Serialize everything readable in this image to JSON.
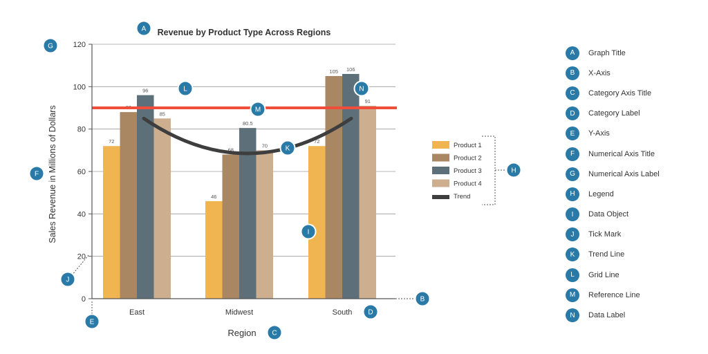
{
  "chart_data": {
    "type": "bar",
    "title": "Revenue by Product Type Across Regions",
    "xlabel": "Region",
    "ylabel": "Sales Revenue in Millions of Dollars",
    "ylim": [
      0,
      120
    ],
    "yticks": [
      "0",
      "20",
      "40",
      "60",
      "80",
      "100",
      "120"
    ],
    "categories": [
      "East",
      "Midwest",
      "South"
    ],
    "series": [
      {
        "name": "Product 1",
        "values": [
          72,
          46,
          72
        ],
        "labels": [
          "72",
          "46",
          "72"
        ],
        "color": "#f0b551"
      },
      {
        "name": "Product 2",
        "values": [
          88,
          68,
          105
        ],
        "labels": [
          "88",
          "68",
          "105"
        ],
        "color": "#a88762"
      },
      {
        "name": "Product 3",
        "values": [
          96,
          80.5,
          106
        ],
        "labels": [
          "96",
          "80.5",
          "106"
        ],
        "color": "#5d7079"
      },
      {
        "name": "Product 4",
        "values": [
          85,
          70,
          91
        ],
        "labels": [
          "85",
          "70",
          "91"
        ],
        "color": "#cdae8f"
      }
    ],
    "trend": {
      "name": "Trend",
      "values": [
        85,
        68.5,
        85
      ],
      "color": "#3e3e3e"
    },
    "reference_line": {
      "value": 90,
      "color": "#f04e3a"
    },
    "grid": true,
    "legend_position": "right"
  },
  "callouts": {
    "graph_title": "A",
    "x_axis": "B",
    "category_axis_title": "C",
    "category_label": "D",
    "y_axis": "E",
    "numerical_axis_title": "F",
    "numerical_axis_label": "G",
    "legend": "H",
    "data_object": "I",
    "tick_mark": "J",
    "trend_line": "K",
    "grid_line": "L",
    "reference_line": "M",
    "data_label": "N"
  },
  "key": [
    {
      "letter": "A",
      "label": "Graph Title"
    },
    {
      "letter": "B",
      "label": "X-Axis"
    },
    {
      "letter": "C",
      "label": "Category Axis Title"
    },
    {
      "letter": "D",
      "label": "Category Label"
    },
    {
      "letter": "E",
      "label": "Y-Axis"
    },
    {
      "letter": "F",
      "label": "Numerical Axis Title"
    },
    {
      "letter": "G",
      "label": "Numerical Axis Label"
    },
    {
      "letter": "H",
      "label": "Legend"
    },
    {
      "letter": "I",
      "label": "Data Object"
    },
    {
      "letter": "J",
      "label": "Tick Mark"
    },
    {
      "letter": "K",
      "label": "Trend Line"
    },
    {
      "letter": "L",
      "label": "Grid Line"
    },
    {
      "letter": "M",
      "label": "Reference Line"
    },
    {
      "letter": "N",
      "label": "Data Label"
    }
  ],
  "colors": {
    "badge": "#2a7aa8",
    "axis": "#555555",
    "grid": "#9a9a9a"
  }
}
